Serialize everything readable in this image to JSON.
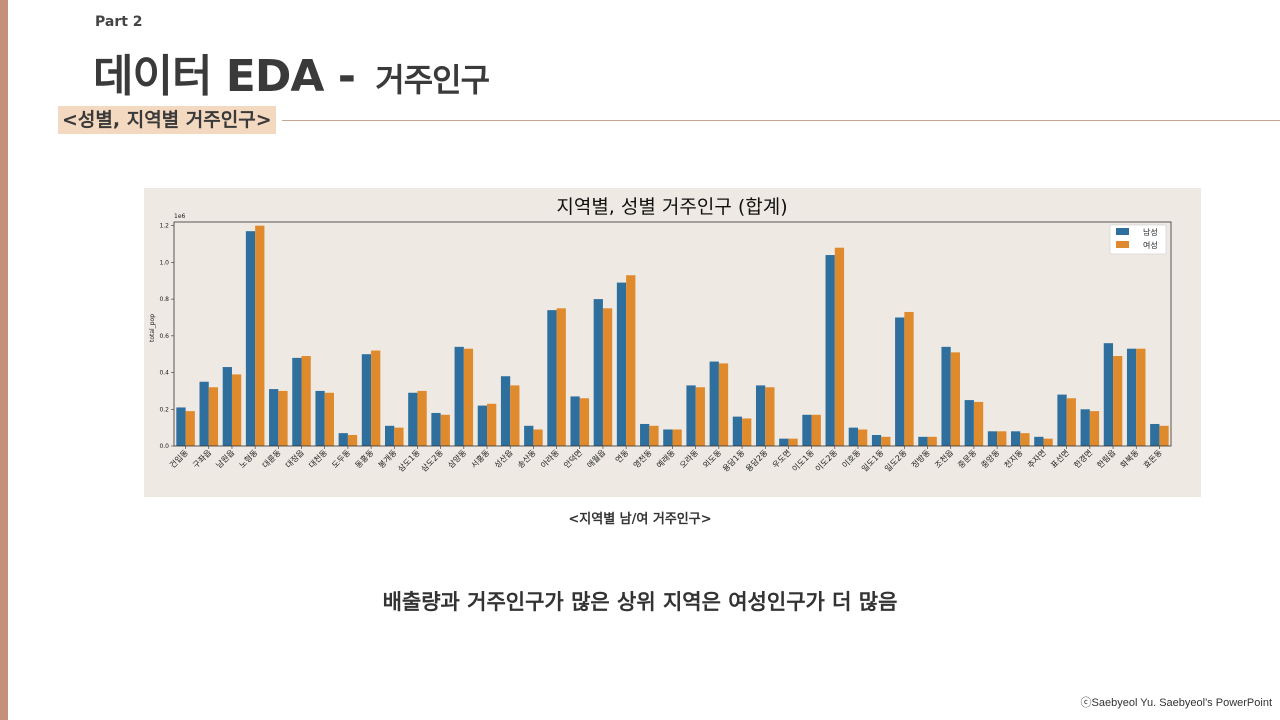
{
  "header": {
    "part": "Part 2",
    "title_main": "데이터 EDA - ",
    "title_sub": "거주인구",
    "section": "<성별, 지역별 거주인구>"
  },
  "caption": "<지역별 남/여 거주인구>",
  "conclusion": "배출량과 거주인구가 많은 상위 지역은 여성인구가 더 많음",
  "footer": "ⓒSaebyeol Yu. Saebyeol's PowerPoint",
  "colors": {
    "male": "#2e6f9e",
    "female": "#e08a2e",
    "panel": "#eeeae3"
  },
  "chart_data": {
    "type": "bar",
    "title": "지역별, 성별 거주인구 (합계)",
    "ylabel": "total_pop",
    "xlabel": "",
    "offset_label": "1e6",
    "ylim": [
      0,
      1.22
    ],
    "yticks": [
      "0.0",
      "0.2",
      "0.4",
      "0.6",
      "0.8",
      "1.0",
      "1.2"
    ],
    "legend_position": "top-right",
    "categories": [
      "건입동",
      "구좌읍",
      "남원읍",
      "노형동",
      "대륜동",
      "대정읍",
      "대천동",
      "도두동",
      "동홍동",
      "봉개동",
      "삼도1동",
      "삼도2동",
      "삼양동",
      "서홍동",
      "성산읍",
      "송산동",
      "아라동",
      "안덕면",
      "애월읍",
      "연동",
      "영천동",
      "예래동",
      "오라동",
      "외도동",
      "용담1동",
      "용담2동",
      "우도면",
      "이도1동",
      "이도2동",
      "이호동",
      "일도1동",
      "일도2동",
      "정방동",
      "조천읍",
      "중문동",
      "중앙동",
      "천지동",
      "추자면",
      "표선면",
      "한경면",
      "한림읍",
      "화북동",
      "효돈동"
    ],
    "series": [
      {
        "name": "남성",
        "values": [
          0.21,
          0.35,
          0.43,
          1.17,
          0.31,
          0.48,
          0.3,
          0.07,
          0.5,
          0.11,
          0.29,
          0.18,
          0.54,
          0.22,
          0.38,
          0.11,
          0.74,
          0.27,
          0.8,
          0.89,
          0.12,
          0.09,
          0.33,
          0.46,
          0.16,
          0.33,
          0.04,
          0.17,
          1.04,
          0.1,
          0.06,
          0.7,
          0.05,
          0.54,
          0.25,
          0.08,
          0.08,
          0.05,
          0.28,
          0.2,
          0.56,
          0.53,
          0.12
        ]
      },
      {
        "name": "여성",
        "values": [
          0.19,
          0.32,
          0.39,
          1.2,
          0.3,
          0.49,
          0.29,
          0.06,
          0.52,
          0.1,
          0.3,
          0.17,
          0.53,
          0.23,
          0.33,
          0.09,
          0.75,
          0.26,
          0.75,
          0.93,
          0.11,
          0.09,
          0.32,
          0.45,
          0.15,
          0.32,
          0.04,
          0.17,
          1.08,
          0.09,
          0.05,
          0.73,
          0.05,
          0.51,
          0.24,
          0.08,
          0.07,
          0.04,
          0.26,
          0.19,
          0.49,
          0.53,
          0.11
        ]
      }
    ]
  }
}
